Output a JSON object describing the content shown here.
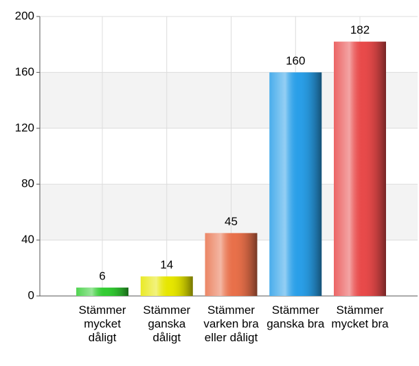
{
  "chart_data": {
    "type": "bar",
    "categories": [
      "Stämmer mycket dåligt",
      "Stämmer ganska dåligt",
      "Stämmer varken bra eller dåligt",
      "Stämmer ganska bra",
      "Stämmer mycket bra"
    ],
    "values": [
      6,
      14,
      45,
      160,
      182
    ],
    "colors": [
      "#33cc33",
      "#e6e600",
      "#e8704a",
      "#2a9fe8",
      "#e84a4a"
    ],
    "ylim": [
      0,
      200
    ],
    "yticks": [
      0,
      40,
      80,
      120,
      160,
      200
    ],
    "grid": true
  }
}
